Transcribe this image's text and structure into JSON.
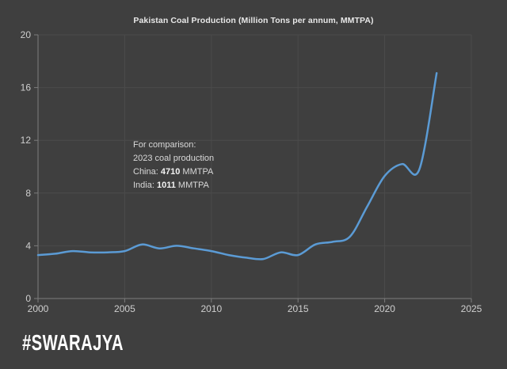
{
  "title": "Pakistan Coal Production (Million Tons per annum, MMTPA)",
  "branding": {
    "logo_text": "#SWARAJYA"
  },
  "annotation": {
    "line1": "For comparison:",
    "line2": "2023 coal production",
    "china_label": "China:",
    "china_value": "4710",
    "china_unit": "MMTPA",
    "india_label": "India:",
    "india_value": "1011",
    "india_unit": "MMTPA"
  },
  "colors": {
    "background": "#3f3f3f",
    "gridline": "#4b4b4b",
    "axis": "#7c7c7c",
    "tick_label": "#cfcfcf",
    "line": "#5b9bd5",
    "annotation_text": "#d9d9d9",
    "logo": "#ffffff"
  },
  "chart_data": {
    "type": "line",
    "title": "Pakistan Coal Production (Million Tons per annum, MMTPA)",
    "x": [
      2000,
      2001,
      2002,
      2003,
      2004,
      2005,
      2006,
      2007,
      2008,
      2009,
      2010,
      2011,
      2012,
      2013,
      2014,
      2015,
      2016,
      2017,
      2018,
      2019,
      2020,
      2021,
      2022,
      2023
    ],
    "series": [
      {
        "name": "Pakistan coal production (MMTPA)",
        "values": [
          3.3,
          3.4,
          3.6,
          3.5,
          3.5,
          3.6,
          4.1,
          3.8,
          4.0,
          3.8,
          3.6,
          3.3,
          3.1,
          3.0,
          3.5,
          3.3,
          4.1,
          4.3,
          4.7,
          7.0,
          9.3,
          10.2,
          9.8,
          17.1
        ]
      }
    ],
    "xlabel": "",
    "ylabel": "",
    "xlim": [
      2000,
      2025
    ],
    "ylim": [
      0,
      20
    ],
    "x_ticks": [
      2000,
      2005,
      2010,
      2015,
      2020,
      2025
    ],
    "y_ticks": [
      0,
      4,
      8,
      12,
      16,
      20
    ],
    "grid": true,
    "smooth": true,
    "legend": "none",
    "line_color": "#5b9bd5",
    "annotations": [
      "For comparison:",
      "2023 coal production",
      "China: 4710 MMTPA",
      "India: 1011 MMTPA"
    ]
  }
}
